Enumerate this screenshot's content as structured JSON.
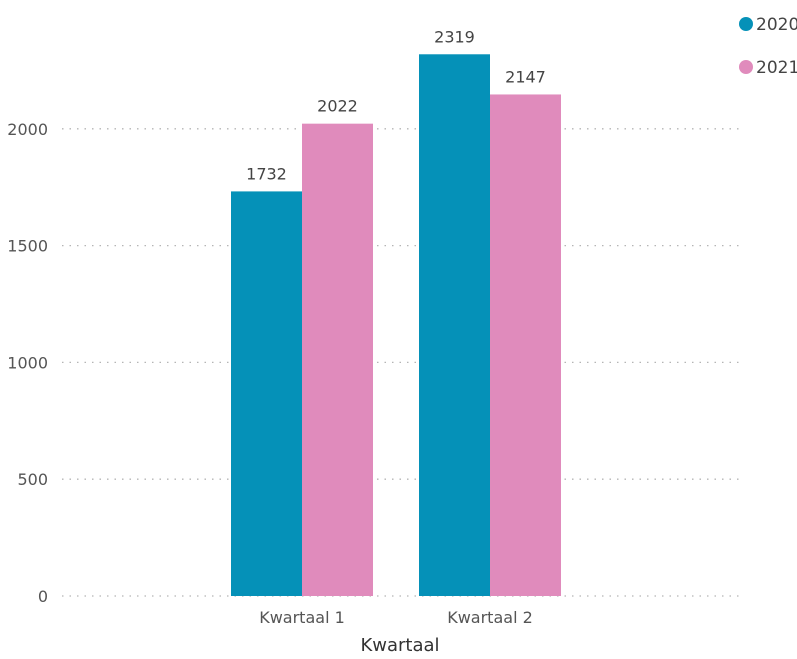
{
  "chart_data": {
    "type": "bar",
    "title": "",
    "xlabel": "Kwartaal",
    "ylabel": "",
    "categories": [
      "Kwartaal 1",
      "Kwartaal 2"
    ],
    "series": [
      {
        "name": "2020",
        "values": [
          1732,
          2319
        ],
        "color": "#0591b8"
      },
      {
        "name": "2021",
        "values": [
          2022,
          2147
        ],
        "color": "#e08bbc"
      }
    ],
    "ylim": [
      0,
      2500
    ],
    "yticks": [
      0,
      500,
      1000,
      1500,
      2000
    ],
    "grid": true,
    "legend": "top-right",
    "data_labels": true
  }
}
